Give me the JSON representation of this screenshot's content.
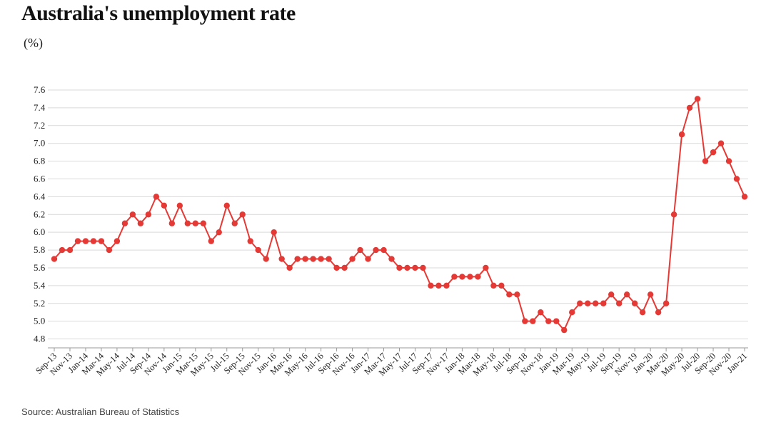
{
  "title": "Australia's unemployment rate",
  "subtitle": "(%)",
  "source": "Source: Australian Bureau of Statistics",
  "colors": {
    "line": "#e53935",
    "grid": "#d9d9d9",
    "axis": "#999999"
  },
  "chart_data": {
    "type": "line",
    "title": "Australia's unemployment rate",
    "ylabel": "(%)",
    "xlabel": "",
    "ylim": [
      4.7,
      7.6
    ],
    "yticks": [
      4.8,
      5.0,
      5.2,
      5.4,
      5.6,
      5.8,
      6.0,
      6.2,
      6.4,
      6.6,
      6.8,
      7.0,
      7.2,
      7.4,
      7.6
    ],
    "grid": true,
    "legend": "none",
    "x": [
      "Sep-13",
      "Oct-13",
      "Nov-13",
      "Dec-13",
      "Jan-14",
      "Feb-14",
      "Mar-14",
      "Apr-14",
      "May-14",
      "Jun-14",
      "Jul-14",
      "Aug-14",
      "Sep-14",
      "Oct-14",
      "Nov-14",
      "Dec-14",
      "Jan-15",
      "Feb-15",
      "Mar-15",
      "Apr-15",
      "May-15",
      "Jun-15",
      "Jul-15",
      "Aug-15",
      "Sep-15",
      "Oct-15",
      "Nov-15",
      "Dec-15",
      "Jan-16",
      "Feb-16",
      "Mar-16",
      "Apr-16",
      "May-16",
      "Jun-16",
      "Jul-16",
      "Aug-16",
      "Sep-16",
      "Oct-16",
      "Nov-16",
      "Dec-16",
      "Jan-17",
      "Feb-17",
      "Mar-17",
      "Apr-17",
      "May-17",
      "Jun-17",
      "Jul-17",
      "Aug-17",
      "Sep-17",
      "Oct-17",
      "Nov-17",
      "Dec-17",
      "Jan-18",
      "Feb-18",
      "Mar-18",
      "Apr-18",
      "May-18",
      "Jun-18",
      "Jul-18",
      "Aug-18",
      "Sep-18",
      "Oct-18",
      "Nov-18",
      "Dec-18",
      "Jan-19",
      "Feb-19",
      "Mar-19",
      "Apr-19",
      "May-19",
      "Jun-19",
      "Jul-19",
      "Aug-19",
      "Sep-19",
      "Oct-19",
      "Nov-19",
      "Dec-19",
      "Jan-20",
      "Feb-20",
      "Mar-20",
      "Apr-20",
      "May-20",
      "Jun-20",
      "Jul-20",
      "Aug-20",
      "Sep-20",
      "Oct-20",
      "Nov-20",
      "Dec-20",
      "Jan-21"
    ],
    "xtick_labels": [
      "Sep-13",
      "Nov-13",
      "Jan-14",
      "Mar-14",
      "May-14",
      "Jul-14",
      "Sep-14",
      "Nov-14",
      "Jan-15",
      "Mar-15",
      "May-15",
      "Jul-15",
      "Sep-15",
      "Nov-15",
      "Jan-16",
      "Mar-16",
      "May-16",
      "Jul-16",
      "Sep-16",
      "Nov-16",
      "Jan-17",
      "Mar-17",
      "May-17",
      "Jul-17",
      "Sep-17",
      "Nov-17",
      "Jan-18",
      "Mar-18",
      "May-18",
      "Jul-18",
      "Sep-18",
      "Nov-18",
      "Jan-19",
      "Mar-19",
      "May-19",
      "Jul-19",
      "Sep-19",
      "Nov-19",
      "Jan-20",
      "Mar-20",
      "May-20",
      "Jul-20",
      "Sep-20",
      "Nov-20",
      "Jan-21"
    ],
    "series": [
      {
        "values": [
          5.7,
          5.8,
          5.8,
          5.9,
          5.9,
          5.9,
          5.9,
          5.8,
          5.9,
          6.1,
          6.2,
          6.1,
          6.2,
          6.4,
          6.3,
          6.1,
          6.3,
          6.1,
          6.1,
          6.1,
          5.9,
          6.0,
          6.3,
          6.1,
          6.2,
          5.9,
          5.8,
          5.7,
          6.0,
          5.7,
          5.6,
          5.7,
          5.7,
          5.7,
          5.7,
          5.7,
          5.6,
          5.6,
          5.7,
          5.8,
          5.7,
          5.8,
          5.8,
          5.7,
          5.6,
          5.6,
          5.6,
          5.6,
          5.4,
          5.4,
          5.4,
          5.5,
          5.5,
          5.5,
          5.5,
          5.6,
          5.4,
          5.4,
          5.3,
          5.3,
          5.0,
          5.0,
          5.1,
          5.0,
          5.0,
          4.9,
          5.1,
          5.2,
          5.2,
          5.2,
          5.2,
          5.3,
          5.2,
          5.3,
          5.2,
          5.1,
          5.3,
          5.1,
          5.2,
          6.2,
          7.1,
          7.4,
          7.5,
          6.8,
          6.9,
          7.0,
          6.8,
          6.6,
          6.4
        ]
      }
    ]
  }
}
